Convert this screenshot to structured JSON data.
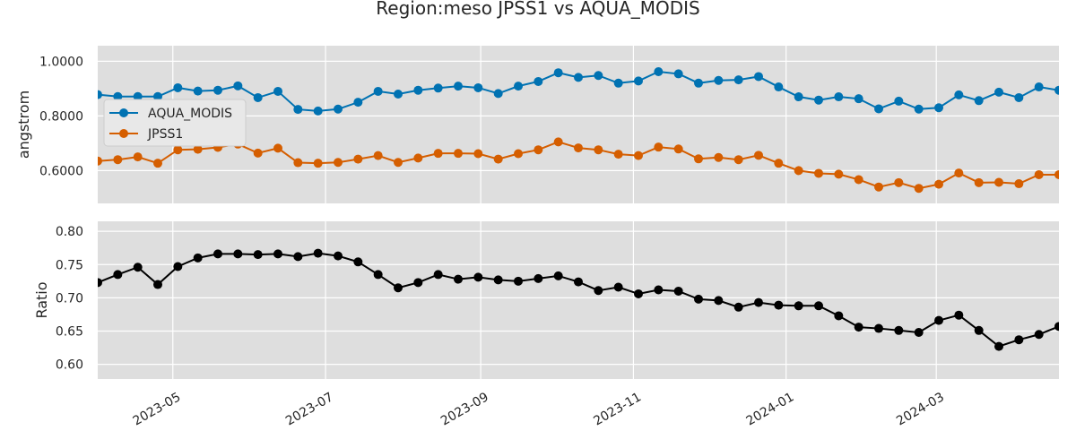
{
  "chart_data": {
    "type": "line",
    "title": "Region:meso JPSS1 vs AQUA_MODIS",
    "x": [
      "2023-04-01",
      "2023-04-09",
      "2023-04-17",
      "2023-04-25",
      "2023-05-03",
      "2023-05-11",
      "2023-05-19",
      "2023-05-27",
      "2023-06-04",
      "2023-06-12",
      "2023-06-20",
      "2023-06-28",
      "2023-07-06",
      "2023-07-14",
      "2023-07-22",
      "2023-07-30",
      "2023-08-07",
      "2023-08-15",
      "2023-08-23",
      "2023-08-31",
      "2023-09-08",
      "2023-09-16",
      "2023-09-24",
      "2023-10-02",
      "2023-10-10",
      "2023-10-18",
      "2023-10-26",
      "2023-11-03",
      "2023-11-11",
      "2023-11-19",
      "2023-11-27",
      "2023-12-05",
      "2023-12-13",
      "2023-12-21",
      "2023-12-29",
      "2024-01-06",
      "2024-01-14",
      "2024-01-22",
      "2024-01-30",
      "2024-02-07",
      "2024-02-15",
      "2024-02-23",
      "2024-03-02",
      "2024-03-10",
      "2024-03-18",
      "2024-03-26",
      "2024-04-03",
      "2024-04-11",
      "2024-04-19"
    ],
    "xlim": [
      "2023-04-01",
      "2024-04-19"
    ],
    "xticks": [
      "2023-05-01",
      "2023-07-01",
      "2023-09-01",
      "2023-11-01",
      "2024-01-01",
      "2024-03-01"
    ],
    "xtick_labels": [
      "2023-05",
      "2023-07",
      "2023-09",
      "2023-11",
      "2024-01",
      "2024-03"
    ],
    "grid": true,
    "panels": [
      {
        "ylabel": "angstrom",
        "ylim": [
          0.48,
          1.057
        ],
        "yticks": [
          0.6,
          0.8,
          1.0
        ],
        "ytick_labels": [
          "0.6000",
          "0.8000",
          "1.0000"
        ],
        "legend": "upper-left",
        "series": [
          {
            "name": "AQUA_MODIS",
            "color": "#0072B2",
            "values": [
              0.878,
              0.871,
              0.871,
              0.871,
              0.903,
              0.891,
              0.894,
              0.91,
              0.867,
              0.89,
              0.824,
              0.818,
              0.825,
              0.85,
              0.89,
              0.88,
              0.894,
              0.902,
              0.909,
              0.903,
              0.882,
              0.909,
              0.926,
              0.958,
              0.941,
              0.948,
              0.92,
              0.928,
              0.962,
              0.954,
              0.92,
              0.93,
              0.932,
              0.944,
              0.906,
              0.87,
              0.858,
              0.87,
              0.863,
              0.826,
              0.854,
              0.825,
              0.83,
              0.877,
              0.856,
              0.887,
              0.867,
              0.906,
              0.894
            ]
          },
          {
            "name": "JPSS1",
            "color": "#D55E00",
            "values": [
              0.635,
              0.64,
              0.65,
              0.627,
              0.676,
              0.678,
              0.685,
              0.697,
              0.664,
              0.682,
              0.629,
              0.627,
              0.63,
              0.642,
              0.655,
              0.63,
              0.646,
              0.663,
              0.663,
              0.662,
              0.642,
              0.662,
              0.676,
              0.705,
              0.683,
              0.676,
              0.66,
              0.655,
              0.686,
              0.679,
              0.643,
              0.648,
              0.64,
              0.656,
              0.627,
              0.6,
              0.59,
              0.587,
              0.567,
              0.54,
              0.556,
              0.535,
              0.55,
              0.591,
              0.556,
              0.557,
              0.552,
              0.585,
              0.585
            ]
          }
        ]
      },
      {
        "ylabel": "Ratio",
        "ylim": [
          0.578,
          0.815
        ],
        "yticks": [
          0.6,
          0.65,
          0.7,
          0.75,
          0.8
        ],
        "ytick_labels": [
          "0.60",
          "0.65",
          "0.70",
          "0.75",
          "0.80"
        ],
        "series": [
          {
            "color": "#000000",
            "values": [
              0.723,
              0.735,
              0.746,
              0.72,
              0.747,
              0.76,
              0.766,
              0.766,
              0.765,
              0.766,
              0.762,
              0.767,
              0.763,
              0.754,
              0.735,
              0.715,
              0.723,
              0.735,
              0.728,
              0.731,
              0.727,
              0.725,
              0.729,
              0.733,
              0.724,
              0.711,
              0.716,
              0.706,
              0.712,
              0.71,
              0.698,
              0.696,
              0.686,
              0.693,
              0.689,
              0.688,
              0.688,
              0.673,
              0.656,
              0.654,
              0.651,
              0.648,
              0.666,
              0.674,
              0.651,
              0.627,
              0.637,
              0.645,
              0.657
            ]
          }
        ]
      }
    ]
  }
}
